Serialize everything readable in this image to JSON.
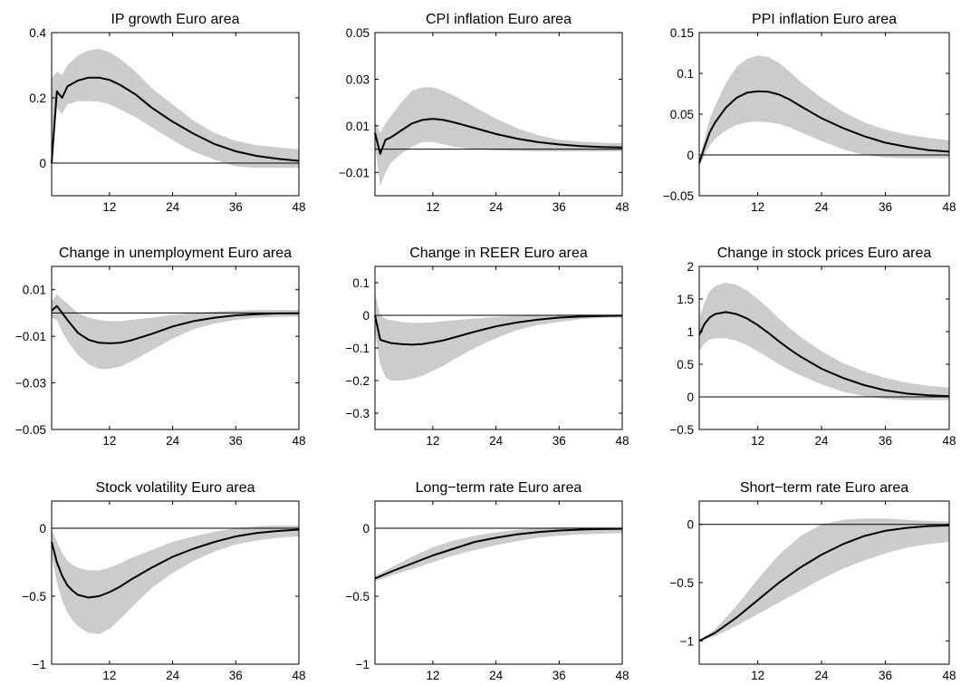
{
  "figure": {
    "background": "#ffffff",
    "band_color": "#cccccc",
    "line_color": "#000000"
  },
  "chart_data": [
    {
      "type": "area",
      "title": "IP growth Euro area",
      "xlabel": "",
      "ylabel": "",
      "xlim": [
        1,
        48
      ],
      "ylim": [
        -0.1,
        0.4
      ],
      "xticks": [
        "12",
        "24",
        "36",
        "48"
      ],
      "xtick_values": [
        12,
        24,
        36,
        48
      ],
      "yticks": [
        "0",
        "0.2",
        "0.4"
      ],
      "ytick_values": [
        0,
        0.2,
        0.4
      ],
      "zero_line": true,
      "grid": false,
      "x": [
        1,
        2,
        3,
        4,
        6,
        8,
        10,
        12,
        14,
        17,
        20,
        24,
        28,
        32,
        36,
        40,
        44,
        48
      ],
      "median": [
        0,
        0.22,
        0.2,
        0.235,
        0.253,
        0.262,
        0.262,
        0.255,
        0.24,
        0.21,
        0.17,
        0.127,
        0.09,
        0.058,
        0.036,
        0.022,
        0.013,
        0.007
      ],
      "upper": [
        0.26,
        0.28,
        0.27,
        0.3,
        0.33,
        0.345,
        0.35,
        0.34,
        0.32,
        0.28,
        0.23,
        0.18,
        0.13,
        0.092,
        0.068,
        0.055,
        0.048,
        0.042
      ],
      "lower": [
        0,
        0.17,
        0.15,
        0.18,
        0.19,
        0.19,
        0.188,
        0.18,
        0.165,
        0.14,
        0.11,
        0.07,
        0.035,
        0.01,
        -0.01,
        -0.015,
        -0.015,
        -0.015
      ]
    },
    {
      "type": "area",
      "title": "CPI inflation Euro area",
      "xlabel": "",
      "ylabel": "",
      "xlim": [
        1,
        48
      ],
      "ylim": [
        -0.02,
        0.05
      ],
      "xticks": [
        "12",
        "24",
        "36",
        "48"
      ],
      "xtick_values": [
        12,
        24,
        36,
        48
      ],
      "yticks": [
        "−0.01",
        "0.01",
        "0.03",
        "0.05"
      ],
      "ytick_values": [
        -0.01,
        0.01,
        0.03,
        0.05
      ],
      "zero_line": true,
      "grid": false,
      "x": [
        1,
        2,
        3,
        4,
        6,
        8,
        10,
        12,
        14,
        16,
        20,
        24,
        28,
        32,
        36,
        40,
        44,
        48
      ],
      "median": [
        0.007,
        -0.002,
        0.004,
        0.005,
        0.008,
        0.011,
        0.0125,
        0.013,
        0.0125,
        0.0115,
        0.009,
        0.0065,
        0.0045,
        0.003,
        0.002,
        0.0013,
        0.0009,
        0.0007
      ],
      "upper": [
        0.012,
        0.007,
        0.011,
        0.014,
        0.02,
        0.025,
        0.0265,
        0.0265,
        0.025,
        0.023,
        0.018,
        0.013,
        0.009,
        0.006,
        0.004,
        0.0032,
        0.0028,
        0.0025
      ],
      "lower": [
        0.002,
        -0.016,
        -0.01,
        -0.006,
        -0.002,
        0.001,
        0.003,
        0.003,
        0.002,
        0.001,
        0.0,
        -0.0005,
        -0.0008,
        -0.001,
        -0.001,
        -0.001,
        -0.001,
        -0.001
      ]
    },
    {
      "type": "area",
      "title": "PPI inflation Euro area",
      "xlabel": "",
      "ylabel": "",
      "xlim": [
        1,
        48
      ],
      "ylim": [
        -0.05,
        0.15
      ],
      "xticks": [
        "12",
        "24",
        "36",
        "48"
      ],
      "xtick_values": [
        12,
        24,
        36,
        48
      ],
      "yticks": [
        "−0.05",
        "0",
        "0.05",
        "0.1",
        "0.15"
      ],
      "ytick_values": [
        -0.05,
        0,
        0.05,
        0.1,
        0.15
      ],
      "zero_line": true,
      "grid": false,
      "x": [
        1,
        2,
        3,
        4,
        6,
        8,
        10,
        12,
        14,
        16,
        18,
        20,
        24,
        28,
        32,
        36,
        40,
        44,
        48
      ],
      "median": [
        -0.01,
        0.01,
        0.028,
        0.04,
        0.058,
        0.07,
        0.0765,
        0.078,
        0.0775,
        0.074,
        0.068,
        0.06,
        0.045,
        0.033,
        0.023,
        0.015,
        0.01,
        0.006,
        0.004
      ],
      "upper": [
        -0.005,
        0.02,
        0.045,
        0.06,
        0.088,
        0.108,
        0.118,
        0.122,
        0.12,
        0.113,
        0.102,
        0.09,
        0.07,
        0.053,
        0.04,
        0.031,
        0.025,
        0.021,
        0.018
      ],
      "lower": [
        -0.015,
        0.0,
        0.012,
        0.02,
        0.03,
        0.037,
        0.04,
        0.041,
        0.04,
        0.038,
        0.034,
        0.028,
        0.017,
        0.007,
        0.0,
        -0.003,
        -0.004,
        -0.004,
        -0.004
      ]
    },
    {
      "type": "area",
      "title": "Change in unemployment Euro area",
      "xlabel": "",
      "ylabel": "",
      "xlim": [
        1,
        48
      ],
      "ylim": [
        -0.05,
        0.02
      ],
      "xticks": [
        "12",
        "24",
        "36",
        "48"
      ],
      "xtick_values": [
        12,
        24,
        36,
        48
      ],
      "yticks": [
        "−0.05",
        "−0.03",
        "−0.01",
        "0.01"
      ],
      "ytick_values": [
        -0.05,
        -0.03,
        -0.01,
        0.01
      ],
      "zero_line": true,
      "grid": false,
      "x": [
        1,
        2,
        3,
        4,
        6,
        8,
        10,
        12,
        14,
        16,
        20,
        24,
        28,
        32,
        36,
        40,
        44,
        48
      ],
      "median": [
        0.001,
        0.003,
        0.0,
        -0.003,
        -0.0085,
        -0.0115,
        -0.0128,
        -0.013,
        -0.0128,
        -0.0118,
        -0.009,
        -0.0058,
        -0.0035,
        -0.002,
        -0.001,
        -0.0005,
        -0.0002,
        -0.0001
      ],
      "upper": [
        0.005,
        0.008,
        0.006,
        0.004,
        0.0,
        -0.002,
        -0.003,
        -0.0035,
        -0.0035,
        -0.003,
        -0.002,
        -0.0008,
        0.0,
        0.0006,
        0.001,
        0.0012,
        0.0013,
        0.0013
      ],
      "lower": [
        -0.002,
        -0.003,
        -0.008,
        -0.012,
        -0.018,
        -0.022,
        -0.024,
        -0.024,
        -0.023,
        -0.021,
        -0.016,
        -0.011,
        -0.007,
        -0.0045,
        -0.003,
        -0.002,
        -0.0017,
        -0.0015
      ]
    },
    {
      "type": "area",
      "title": "Change in REER Euro area",
      "xlabel": "",
      "ylabel": "",
      "xlim": [
        1,
        48
      ],
      "ylim": [
        -0.35,
        0.15
      ],
      "xticks": [
        "12",
        "24",
        "36",
        "48"
      ],
      "xtick_values": [
        12,
        24,
        36,
        48
      ],
      "yticks": [
        "−0.3",
        "−0.2",
        "−0.1",
        "0",
        "0.1"
      ],
      "ytick_values": [
        -0.3,
        -0.2,
        -0.1,
        0,
        0.1
      ],
      "zero_line": true,
      "grid": false,
      "x": [
        1,
        2,
        3,
        4,
        6,
        8,
        10,
        12,
        14,
        16,
        20,
        24,
        28,
        32,
        36,
        40,
        44,
        48
      ],
      "median": [
        0.0,
        -0.075,
        -0.08,
        -0.085,
        -0.088,
        -0.09,
        -0.088,
        -0.083,
        -0.077,
        -0.068,
        -0.05,
        -0.034,
        -0.022,
        -0.013,
        -0.007,
        -0.004,
        -0.002,
        -0.001
      ],
      "upper": [
        0.07,
        0.0,
        -0.01,
        -0.015,
        -0.02,
        -0.023,
        -0.023,
        -0.021,
        -0.018,
        -0.015,
        -0.01,
        -0.005,
        -0.002,
        0.0,
        0.002,
        0.003,
        0.004,
        0.004
      ],
      "lower": [
        -0.05,
        -0.15,
        -0.19,
        -0.2,
        -0.2,
        -0.195,
        -0.185,
        -0.17,
        -0.155,
        -0.135,
        -0.1,
        -0.07,
        -0.045,
        -0.03,
        -0.02,
        -0.012,
        -0.008,
        -0.007
      ]
    },
    {
      "type": "area",
      "title": "Change in stock prices Euro area",
      "xlabel": "",
      "ylabel": "",
      "xlim": [
        1,
        48
      ],
      "ylim": [
        -0.5,
        2
      ],
      "xticks": [
        "12",
        "24",
        "36",
        "48"
      ],
      "xtick_values": [
        12,
        24,
        36,
        48
      ],
      "yticks": [
        "−0.5",
        "0",
        "0.5",
        "1",
        "1.5",
        "2"
      ],
      "ytick_values": [
        -0.5,
        0,
        0.5,
        1,
        1.5,
        2
      ],
      "zero_line": true,
      "grid": false,
      "x": [
        1,
        2,
        3,
        4,
        6,
        8,
        10,
        12,
        14,
        16,
        18,
        20,
        24,
        28,
        32,
        36,
        40,
        44,
        48
      ],
      "median": [
        0.95,
        1.12,
        1.22,
        1.27,
        1.3,
        1.27,
        1.2,
        1.1,
        0.98,
        0.85,
        0.73,
        0.62,
        0.43,
        0.29,
        0.18,
        0.1,
        0.05,
        0.025,
        0.01
      ],
      "upper": [
        1.2,
        1.45,
        1.62,
        1.7,
        1.75,
        1.72,
        1.63,
        1.5,
        1.36,
        1.2,
        1.06,
        0.92,
        0.7,
        0.52,
        0.39,
        0.29,
        0.22,
        0.17,
        0.14
      ],
      "lower": [
        0.7,
        0.82,
        0.88,
        0.9,
        0.9,
        0.86,
        0.79,
        0.7,
        0.6,
        0.5,
        0.41,
        0.33,
        0.19,
        0.08,
        0.01,
        -0.03,
        -0.05,
        -0.05,
        -0.05
      ]
    },
    {
      "type": "area",
      "title": "Stock volatility Euro area",
      "xlabel": "",
      "ylabel": "",
      "xlim": [
        1,
        48
      ],
      "ylim": [
        -1,
        0.2
      ],
      "xticks": [
        "12",
        "24",
        "36",
        "48"
      ],
      "xtick_values": [
        12,
        24,
        36,
        48
      ],
      "yticks": [
        "−1",
        "−0.5",
        "0"
      ],
      "ytick_values": [
        -1,
        -0.5,
        0
      ],
      "zero_line": true,
      "grid": false,
      "x": [
        1,
        2,
        3,
        4,
        5,
        6,
        8,
        10,
        12,
        14,
        16,
        20,
        24,
        28,
        32,
        36,
        40,
        44,
        48
      ],
      "median": [
        -0.1,
        -0.25,
        -0.35,
        -0.42,
        -0.46,
        -0.49,
        -0.51,
        -0.5,
        -0.47,
        -0.43,
        -0.38,
        -0.29,
        -0.21,
        -0.15,
        -0.1,
        -0.06,
        -0.035,
        -0.02,
        -0.01
      ],
      "upper": [
        0.0,
        -0.1,
        -0.18,
        -0.24,
        -0.27,
        -0.29,
        -0.31,
        -0.31,
        -0.29,
        -0.26,
        -0.22,
        -0.16,
        -0.1,
        -0.06,
        -0.025,
        0.0,
        0.015,
        0.02,
        0.02
      ],
      "lower": [
        -0.2,
        -0.4,
        -0.53,
        -0.62,
        -0.68,
        -0.72,
        -0.77,
        -0.78,
        -0.74,
        -0.67,
        -0.59,
        -0.44,
        -0.33,
        -0.24,
        -0.17,
        -0.12,
        -0.09,
        -0.07,
        -0.06
      ]
    },
    {
      "type": "area",
      "title": "Long−term rate Euro area",
      "xlabel": "",
      "ylabel": "",
      "xlim": [
        1,
        48
      ],
      "ylim": [
        -1,
        0.2
      ],
      "xticks": [
        "12",
        "24",
        "36",
        "48"
      ],
      "xtick_values": [
        12,
        24,
        36,
        48
      ],
      "yticks": [
        "−1",
        "−0.5",
        "0"
      ],
      "ytick_values": [
        -1,
        -0.5,
        0
      ],
      "zero_line": true,
      "grid": false,
      "x": [
        1,
        4,
        8,
        12,
        16,
        20,
        24,
        28,
        32,
        36,
        40,
        44,
        48
      ],
      "median": [
        -0.37,
        -0.32,
        -0.26,
        -0.2,
        -0.15,
        -0.1,
        -0.07,
        -0.045,
        -0.028,
        -0.017,
        -0.01,
        -0.006,
        -0.004
      ],
      "upper": [
        -0.35,
        -0.29,
        -0.21,
        -0.14,
        -0.09,
        -0.055,
        -0.03,
        -0.012,
        0.0,
        0.008,
        0.01,
        0.01,
        0.01
      ],
      "lower": [
        -0.39,
        -0.35,
        -0.3,
        -0.25,
        -0.2,
        -0.16,
        -0.125,
        -0.095,
        -0.07,
        -0.055,
        -0.045,
        -0.04,
        -0.035
      ]
    },
    {
      "type": "area",
      "title": "Short−term rate Euro area",
      "xlabel": "",
      "ylabel": "",
      "xlim": [
        1,
        48
      ],
      "ylim": [
        -1.2,
        0.2
      ],
      "xticks": [
        "12",
        "24",
        "36",
        "48"
      ],
      "xtick_values": [
        12,
        24,
        36,
        48
      ],
      "yticks": [
        "−1",
        "−0.5",
        "0"
      ],
      "ytick_values": [
        -1,
        -0.5,
        0
      ],
      "zero_line": true,
      "grid": false,
      "x": [
        1,
        4,
        8,
        12,
        16,
        20,
        24,
        28,
        32,
        36,
        40,
        44,
        48
      ],
      "median": [
        -1.0,
        -0.93,
        -0.8,
        -0.65,
        -0.5,
        -0.37,
        -0.26,
        -0.17,
        -0.1,
        -0.055,
        -0.03,
        -0.015,
        -0.01
      ],
      "upper": [
        -1.0,
        -0.9,
        -0.7,
        -0.47,
        -0.26,
        -0.1,
        0.0,
        0.04,
        0.05,
        0.05,
        0.04,
        0.03,
        0.025
      ],
      "lower": [
        -1.0,
        -0.96,
        -0.87,
        -0.77,
        -0.67,
        -0.57,
        -0.47,
        -0.38,
        -0.31,
        -0.25,
        -0.2,
        -0.17,
        -0.15
      ]
    }
  ]
}
